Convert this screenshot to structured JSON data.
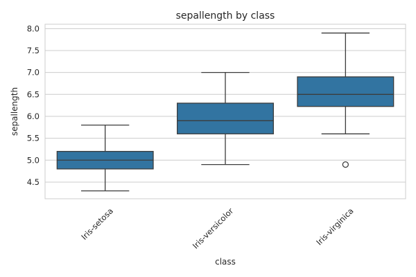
{
  "chart_data": {
    "type": "boxplot",
    "title": "sepallength by class",
    "xlabel": "class",
    "ylabel": "sepallength",
    "ylim": [
      4.12,
      8.1
    ],
    "yticks": [
      "4.5",
      "5.0",
      "5.5",
      "6.0",
      "6.5",
      "7.0",
      "7.5",
      "8.0"
    ],
    "grid": true,
    "box_color": "#3274a1",
    "line_color": "#3c3c3c",
    "categories": [
      "Iris-setosa",
      "Iris-versicolor",
      "Iris-virginica"
    ],
    "boxes": [
      {
        "whisker_low": 4.3,
        "q1": 4.8,
        "median": 5.0,
        "q3": 5.2,
        "whisker_high": 5.8,
        "outliers": []
      },
      {
        "whisker_low": 4.9,
        "q1": 5.6,
        "median": 5.9,
        "q3": 6.3,
        "whisker_high": 7.0,
        "outliers": []
      },
      {
        "whisker_low": 5.6,
        "q1": 6.225,
        "median": 6.5,
        "q3": 6.9,
        "whisker_high": 7.9,
        "outliers": [
          4.9
        ]
      }
    ]
  }
}
